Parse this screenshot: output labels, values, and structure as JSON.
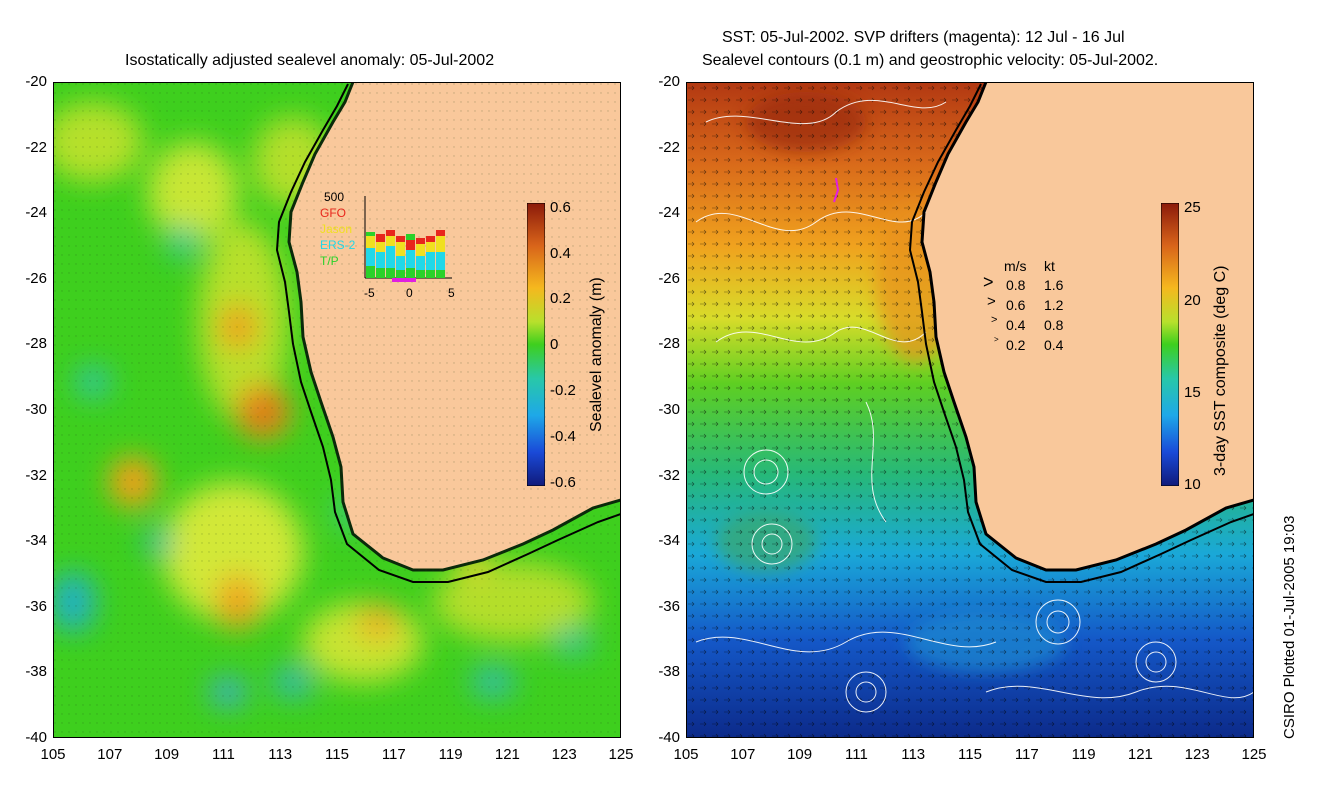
{
  "left_panel": {
    "title": "Isostatically adjusted sealevel anomaly: 05-Jul-2002",
    "colorbar_label": "Sealevel anomaly (m)",
    "colorbar_ticks": [
      "0.6",
      "0.4",
      "0.2",
      "0",
      "-0.2",
      "-0.4",
      "-0.6"
    ],
    "satellite_legend": {
      "max_label": "500",
      "entries": [
        {
          "name": "GFO",
          "color": "#e8261c"
        },
        {
          "name": "Jason",
          "color": "#f0e020"
        },
        {
          "name": "ERS-2",
          "color": "#20d8e8"
        },
        {
          "name": "T/P",
          "color": "#2ad12a"
        }
      ],
      "x_ticks": [
        "-5",
        "0",
        "5"
      ]
    }
  },
  "right_panel": {
    "title_line1": "SST: 05-Jul-2002. SVP drifters (magenta): 12 Jul - 16 Jul",
    "title_line2": "Sealevel contours (0.1 m) and geostrophic velocity: 05-Jul-2002.",
    "colorbar_label": "3-day SST composite (deg C)",
    "colorbar_ticks": [
      "25",
      "20",
      "15",
      "10"
    ],
    "velocity_key": {
      "header_ms": "m/s",
      "header_kt": "kt",
      "rows": [
        {
          "ms": "0.8",
          "kt": "1.6"
        },
        {
          "ms": "0.6",
          "kt": "1.2"
        },
        {
          "ms": "0.4",
          "kt": "0.8"
        },
        {
          "ms": "0.2",
          "kt": "0.4"
        }
      ]
    }
  },
  "axes": {
    "y_ticks": [
      "-20",
      "-22",
      "-24",
      "-26",
      "-28",
      "-30",
      "-32",
      "-34",
      "-36",
      "-38",
      "-40"
    ],
    "x_ticks": [
      "105",
      "107",
      "109",
      "111",
      "113",
      "115",
      "117",
      "119",
      "121",
      "123",
      "125"
    ]
  },
  "credit": "CSIRO Plotted 01-Jul-2005 19:03",
  "colors": {
    "land": "#f9c89b",
    "ocean_green": "#3ecf1e",
    "coastline": "#000000"
  }
}
